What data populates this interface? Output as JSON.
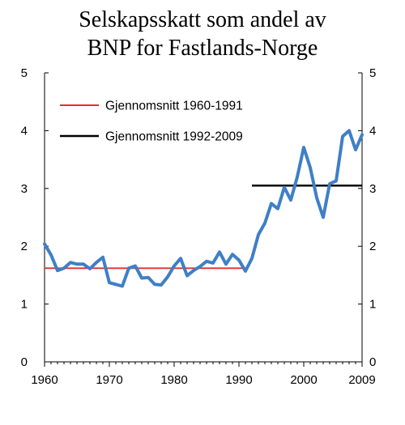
{
  "chart_data": {
    "type": "line",
    "title_lines": [
      "Selskapsskatt som andel av",
      "BNP for Fastlands-Norge"
    ],
    "xlabel": "",
    "ylabel": "",
    "xlim": [
      1960,
      2009
    ],
    "ylim": [
      0,
      5
    ],
    "x_ticks": [
      1960,
      1970,
      1980,
      1990,
      2000,
      2009
    ],
    "y_ticks": [
      0,
      1,
      2,
      3,
      4,
      5
    ],
    "grid": false,
    "legend_position": "top-left",
    "series": [
      {
        "name": "",
        "color": "#3f7fc6",
        "x": [
          1960,
          1961,
          1962,
          1963,
          1964,
          1965,
          1966,
          1967,
          1968,
          1969,
          1970,
          1971,
          1972,
          1973,
          1974,
          1975,
          1976,
          1977,
          1978,
          1979,
          1980,
          1981,
          1982,
          1983,
          1984,
          1985,
          1986,
          1987,
          1988,
          1989,
          1990,
          1991,
          1992,
          1993,
          1994,
          1995,
          1996,
          1997,
          1998,
          1999,
          2000,
          2001,
          2002,
          2003,
          2004,
          2005,
          2006,
          2007,
          2008,
          2009
        ],
        "y": [
          2.04,
          1.85,
          1.58,
          1.62,
          1.72,
          1.69,
          1.69,
          1.61,
          1.72,
          1.81,
          1.37,
          1.34,
          1.31,
          1.62,
          1.66,
          1.45,
          1.46,
          1.34,
          1.33,
          1.47,
          1.66,
          1.79,
          1.49,
          1.58,
          1.65,
          1.74,
          1.71,
          1.9,
          1.69,
          1.86,
          1.76,
          1.57,
          1.79,
          2.2,
          2.4,
          2.74,
          2.65,
          3.02,
          2.8,
          3.2,
          3.71,
          3.36,
          2.84,
          2.5,
          3.08,
          3.13,
          3.9,
          4.0,
          3.67,
          3.93
        ]
      }
    ],
    "reference_lines": [
      {
        "name": "Gjennomsnitt 1960-1991",
        "color": "#e0302a",
        "x_start": 1960,
        "x_end": 1991,
        "value": 1.62
      },
      {
        "name": "Gjennomsnitt 1992-2009",
        "color": "#000000",
        "x_start": 1992,
        "x_end": 2009,
        "value": 3.05
      }
    ]
  }
}
